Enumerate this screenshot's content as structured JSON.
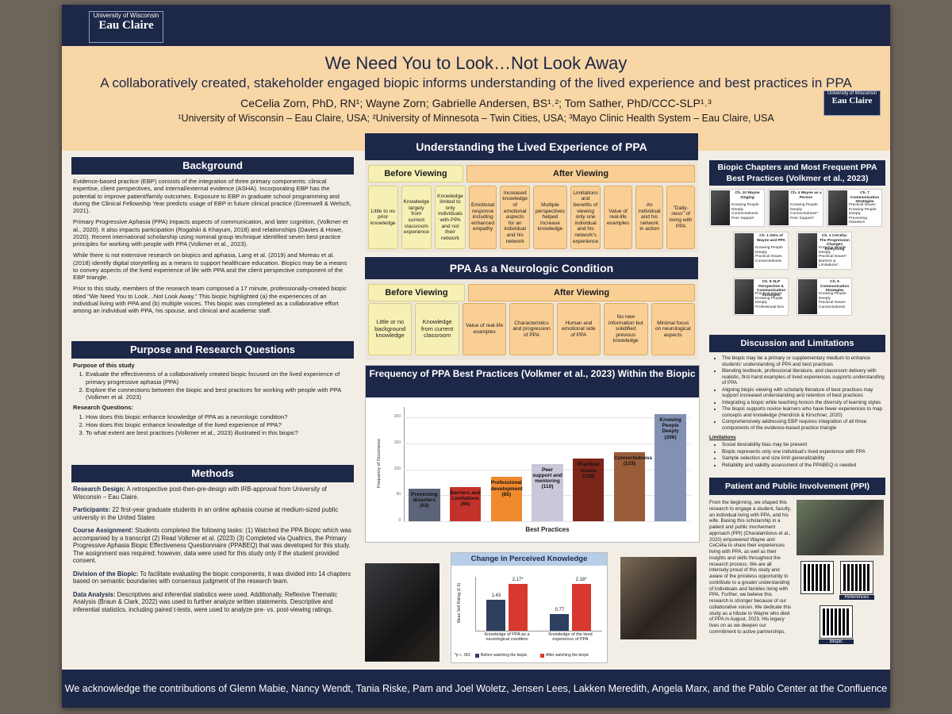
{
  "header": {
    "logo_top": "University of Wisconsin",
    "logo_bottom": "Eau Claire",
    "title": "We Need You to Look…Not Look Away",
    "subtitle": "A collaboratively created, stakeholder engaged biopic informs understanding of the lived experience and best practices in PPA",
    "authors": "CeCelia Zorn, PhD, RN¹; Wayne Zorn; Gabrielle Andersen, BS¹˒²; Tom Sather, PhD/CCC-SLP¹˒³",
    "affiliations": "¹University of Wisconsin – Eau Claire, USA; ²University of Minnesota – Twin Cities, USA; ³Mayo Clinic Health System – Eau Claire, USA"
  },
  "background": {
    "heading": "Background",
    "paragraphs": [
      "Evidence-based practice (EBP) consists of the integration of three primary components: clinical expertise, client perspectives, and internal/external evidence (ASHA). Incorporating EBP has the potential to improve patient/family outcomes. Exposure to EBP in graduate school programming and during the Clinical Fellowship Year predicts usage of EBP in future clinical practice (Greenwell & Welsch, 2021).",
      "Primary Progressive Aphasia (PPA) impacts aspects of communication, and later cognition, (Volkmer et al., 2020). It also impacts participation (Rogalski & Khayum, 2018) and relationships (Davies & Howe, 2020). Recent international scholarship using nominal group technique identified seven best practice principles for working with people with PPA (Volkmer et al., 2023).",
      "While there is not extensive research on biopics and aphasia, Lang et al. (2019) and Moreau et al. (2018) identify digital storytelling as a means to support healthcare education. Biopics may be a means to convey aspects of the lived experience of life with PPA and the client perspective component of the EBP triangle.",
      "Prior to this study, members of the research team composed a 17 minute, professionally-created biopic titled \"We Need You to Look…Not Look Away.\" This biopic highlighted (a) the experiences of an individual living with PPA and (b) multiple voices. This biopic was completed as a collaborative effort among an individual with PPA, his spouse, and clinical and academic staff."
    ]
  },
  "purpose": {
    "heading": "Purpose and Research Questions",
    "study_heading": "Purpose of this study",
    "study_items": [
      "Evaluate the effectiveness of a collaboratively created biopic focused on the lived experience of primary progressive aphasia (PPA)",
      "Explore the connections between the biopic and best practices for working with people with PPA (Volkmer et al. 2023)"
    ],
    "questions_heading": "Research Questions:",
    "questions": [
      "How does this biopic enhance knowledge of PPA as a neurologic condition?",
      "How does this biopic enhance knowledge of the lived experience of PPA?",
      "To what extent are best practices (Volkmer et al., 2023) illustrated in this biopic?"
    ]
  },
  "methods": {
    "heading": "Methods",
    "items": [
      {
        "label": "Research Design:",
        "text": "A retrospective post-then-pre-design with IRB-approval from University of Wisconsin – Eau Claire."
      },
      {
        "label": "Participants:",
        "text": "22 first-year graduate students in an online aphasia course at medium-sized public university in the United States"
      },
      {
        "label": "Course Assignment:",
        "text": "Students completed the following tasks: (1) Watched the PPA Biopic which was accompanied by a transcript (2) Read Volkmer et al. (2023) (3) Completed via Qualtrics, the Primary Progressive Aphasia Biopic Effectiveness Questionnaire (PPABEQ) that was developed for this study. The assignment was required; however, data were used for this study only if the student provided consent."
      },
      {
        "label": "Division of the Biopic:",
        "text": "To facilitate evaluating the biopic components, it was divided into 14 chapters based on semantic boundaries with consensus judgment of the research team."
      },
      {
        "label": "Data Analysis:",
        "text": "Descriptives and inferential statistics were used. Additionally, Reflexive Thematic Analysis (Braun & Clark, 2022) was used to further analyze written statements. Descriptive and inferential statistics, including paired t-tests, were used to analyze pre- vs. post-viewing ratings."
      }
    ]
  },
  "lived_experience": {
    "heading": "Understanding the Lived Experience of PPA",
    "before_heading": "Before Viewing",
    "before_items": [
      "Little to no prior knowledge",
      "Knowledge largely from current classroom experience",
      "Knowledge limited to only individuals with PPA and not their network"
    ],
    "after_heading": "After Viewing",
    "after_items": [
      "Emotional response including enhanced empathy",
      "Increased knowledge of emotional aspects for an individual and his network",
      "Multiple perspectives helped increase knowledge",
      "Limitations and benefits of viewing only one individual and his network's experience",
      "Value of real-life examples",
      "An individual and his network in action",
      "\"Daily-ness\" of living with PPA"
    ]
  },
  "neurologic": {
    "heading": "PPA As a Neurologic Condition",
    "before_heading": "Before Viewing",
    "before_items": [
      "Little or no background knowledge",
      "Knowledge from current classroom"
    ],
    "after_heading": "After Viewing",
    "after_items": [
      "Value of real-life examples",
      "Characteristics and progression of PPA",
      "Human and emotional side of PPA",
      "No new information but solidified previous knowledge",
      "Minimal focus on neurological aspects"
    ]
  },
  "frequency_chart": {
    "type": "bar",
    "title": "Frequency of PPA Best Practices (Volkmer et al., 2023) Within the Biopic",
    "ylabel": "Frequency of Occurrence",
    "xlabel": "Best Practices",
    "categories": [
      "Preventing disasters",
      "Barriers and Limitations",
      "Professional development",
      "Peer support and mentoring",
      "Practical Issues",
      "Connectedness",
      "Knowing People Deeply"
    ],
    "values": [
      63,
      66,
      85,
      110,
      120,
      133,
      206
    ],
    "value_labels": [
      "(63)",
      "(66)",
      "(85)",
      "(110)",
      "(120)",
      "(133)",
      "(206)"
    ],
    "colors": [
      "#5c6479",
      "#c3322a",
      "#f08a2e",
      "#c9c8d9",
      "#7c2519",
      "#9b5c3a",
      "#8291b3"
    ],
    "ylim": [
      0,
      220
    ],
    "yticks": [
      0,
      50,
      100,
      150,
      200
    ]
  },
  "knowledge_chart": {
    "type": "bar",
    "title": "Change in Perceived Knowledge",
    "ylabel": "Mean Self Rating (1-5)",
    "categories": [
      "Knowledge of PPA as a neurological condition",
      "Knowledge of the lived experience of PPA"
    ],
    "series": [
      {
        "name": "Before watching the biopic",
        "color": "#2f3f5f",
        "values": [
          1.43,
          0.77
        ]
      },
      {
        "name": "After watching the biopic",
        "color": "#d8392e",
        "values": [
          2.17,
          2.18
        ],
        "value_labels": [
          "2.17*",
          "2.18*"
        ]
      }
    ],
    "note": "*p < .001",
    "ylim": [
      0,
      2.5
    ]
  },
  "chapters": {
    "heading": "Biopic Chapters and Most Frequent PPA Best Practices (Volkmer et al., 2023)",
    "items": [
      {
        "title": "Ch. 10 Wayne Singing",
        "practices": [
          "Knowing People Deeply",
          "Connectedness",
          "Peer Support"
        ]
      },
      {
        "title": "Ch. 4 Wayne as a Person",
        "practices": [
          "Knowing People Deeply",
          "Connectedness*",
          "Peer Support*"
        ]
      },
      {
        "title": "Ch. 7 Communication Strategies",
        "practices": [
          "Practical Issues",
          "Knowing People Deeply",
          "Preventing Disasters"
        ]
      },
      {
        "title": "Ch. 1 Intro of Wayne and PPA",
        "practices": [
          "Knowing People Deeply",
          "Practical Issues",
          "Connectedness"
        ]
      },
      {
        "title": "Ch. 3 CeCelia: The Progression Changes Everything",
        "practices": [
          "Knowing People Deeply",
          "Practical Issues*",
          "Barriers & Limitations*"
        ]
      },
      {
        "title": "Ch. 8 SLP Perspective & Communication Strategies",
        "practices": [
          "Practical Issues",
          "Knowing People Deeply",
          "Professional Dev"
        ]
      },
      {
        "title": "Ch. 9 Communication Strategies",
        "practices": [
          "Knowing People Deeply",
          "Practical Issues",
          "Connectedness"
        ]
      }
    ]
  },
  "discussion": {
    "heading": "Discussion and Limitations",
    "bullets": [
      "The biopic may be a primary or supplementary medium to enhance students' understanding of PPA and best practices",
      "Blending textbook, professional literature, and classroom delivery with realistic, first-hand examples of lived experiences supports understanding of PPA",
      "Aligning biopic viewing with scholarly literature of best practices may support increased understanding and retention of best practices",
      "Integrating a biopic while teaching honors the diversity of learning styles",
      "The biopic supports novice learners who have fewer experiences to map concepts and knowledge (Hendrick & Kirschner, 2020)",
      "Comprehensively addressing EBP requires integration of all three components of the evidence-based practice triangle"
    ],
    "limitations_heading": "Limitations",
    "limitations": [
      "Social desirability bias may be present",
      "Biopic represents only one individual's lived experience with PPA",
      "Sample selection and size limit generalizability",
      "Reliability and validity assessment of the PPABEQ is needed"
    ]
  },
  "ppi": {
    "heading": "Patient and Public Involvement (PPI)",
    "text": "From the beginning, we shaped this research to engage a student, faculty, an individual living with PPA, and his wife. Basing this scholarship in a patient and public involvement approach (PPI) (Charalambous et al., 2020) empowered Wayne and CeCelia to share their experiences living with PPA, as well as their insights and skills throughout the research process. We are all intensely proud of this study and aware of the priceless opportunity to contribute to a greater understanding of individuals and families living with PPA. Further, we believe this research is stronger because of our collaborative voices. We dedicate this study as a tribute to Wayne who died of PPA in August, 2023. His legacy lives on as we deepen our commitment to active partnerships.",
    "qr_labels": [
      "References",
      "Biopic"
    ]
  },
  "footer": {
    "text": "We acknowledge the contributions of Glenn Mabie, Nancy Wendt, Tania Riske, Pam and Joel Woletz, Jensen Lees, Lakken Meredith, Angela Marx, and the Pablo Center at the Confluence"
  }
}
